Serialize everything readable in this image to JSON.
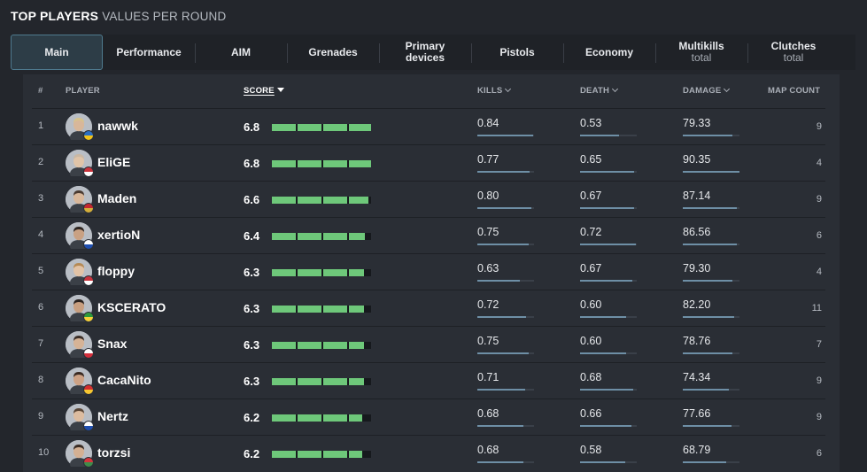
{
  "title": {
    "main": "TOP PLAYERS",
    "sub": "VALUES PER ROUND"
  },
  "tabs": [
    {
      "label": "Main",
      "sub": "",
      "active": true
    },
    {
      "label": "Performance",
      "sub": ""
    },
    {
      "label": "AIM",
      "sub": ""
    },
    {
      "label": "Grenades",
      "sub": ""
    },
    {
      "label": "Primary devices",
      "sub": ""
    },
    {
      "label": "Pistols",
      "sub": ""
    },
    {
      "label": "Economy",
      "sub": ""
    },
    {
      "label": "Multikills",
      "sub": "total"
    },
    {
      "label": "Clutches",
      "sub": "total"
    }
  ],
  "headers": {
    "rank": "#",
    "player": "PLAYER",
    "score": "SCORE",
    "kills": "KILLS",
    "death": "DEATH",
    "damage": "DAMAGE",
    "maps": "MAP COUNT"
  },
  "score_max": 6.8,
  "colors": {
    "score_bar": "#6ec87a",
    "stat_bar": "#6e8fa6",
    "active_tab_border": "#4f7a8e"
  },
  "players": [
    {
      "rank": "1",
      "name": "nawwk",
      "score": "6.8",
      "kills": "0.84",
      "death": "0.53",
      "damage": "79.33",
      "maps": "9",
      "flag": "sweden-flag-icon",
      "flag_colors": [
        "#2b6fc2",
        "#f2c318"
      ],
      "skin": "#d8b79a",
      "hair": "#d7c28c",
      "kills_fill": 0.98,
      "death_fill": 0.68,
      "damage_fill": 0.88
    },
    {
      "rank": "2",
      "name": "EliGE",
      "score": "6.8",
      "kills": "0.77",
      "death": "0.65",
      "damage": "90.35",
      "maps": "4",
      "flag": "usa-flag-icon",
      "flag_colors": [
        "#c8323c",
        "#ffffff"
      ],
      "skin": "#e0c4a8",
      "hair": "#c9b8a4",
      "kills_fill": 0.92,
      "death_fill": 0.95,
      "damage_fill": 1.0
    },
    {
      "rank": "3",
      "name": "Maden",
      "score": "6.6",
      "kills": "0.80",
      "death": "0.67",
      "damage": "87.14",
      "maps": "9",
      "flag": "montenegro-flag-icon",
      "flag_colors": [
        "#c4272f",
        "#d3ae3b"
      ],
      "skin": "#d9b89b",
      "hair": "#4a3a30",
      "kills_fill": 0.95,
      "death_fill": 0.96,
      "damage_fill": 0.96
    },
    {
      "rank": "4",
      "name": "xertioN",
      "score": "6.4",
      "kills": "0.75",
      "death": "0.72",
      "damage": "86.56",
      "maps": "6",
      "flag": "israel-flag-icon",
      "flag_colors": [
        "#ffffff",
        "#1f4fb0"
      ],
      "skin": "#c9a183",
      "hair": "#2d2521",
      "kills_fill": 0.9,
      "death_fill": 0.98,
      "damage_fill": 0.95
    },
    {
      "rank": "5",
      "name": "floppy",
      "score": "6.3",
      "kills": "0.63",
      "death": "0.67",
      "damage": "79.30",
      "maps": "4",
      "flag": "usa-flag-icon",
      "flag_colors": [
        "#c8323c",
        "#ffffff"
      ],
      "skin": "#e2c3a6",
      "hair": "#b58a55",
      "kills_fill": 0.75,
      "death_fill": 0.92,
      "damage_fill": 0.88
    },
    {
      "rank": "6",
      "name": "KSCERATO",
      "score": "6.3",
      "kills": "0.72",
      "death": "0.60",
      "damage": "82.20",
      "maps": "11",
      "flag": "brazil-flag-icon",
      "flag_colors": [
        "#2f9a3c",
        "#f6d13a"
      ],
      "skin": "#c89f80",
      "hair": "#2a221e",
      "kills_fill": 0.86,
      "death_fill": 0.82,
      "damage_fill": 0.91
    },
    {
      "rank": "7",
      "name": "Snax",
      "score": "6.3",
      "kills": "0.75",
      "death": "0.60",
      "damage": "78.76",
      "maps": "7",
      "flag": "poland-flag-icon",
      "flag_colors": [
        "#ffffff",
        "#d32f3c"
      ],
      "skin": "#d6b396",
      "hair": "#3b2e27",
      "kills_fill": 0.9,
      "death_fill": 0.82,
      "damage_fill": 0.87
    },
    {
      "rank": "8",
      "name": "CacaNito",
      "score": "6.3",
      "kills": "0.71",
      "death": "0.68",
      "damage": "74.34",
      "maps": "9",
      "flag": "north-macedonia-flag-icon",
      "flag_colors": [
        "#d32f2f",
        "#f6c631"
      ],
      "skin": "#cda285",
      "hair": "#3a2a22",
      "kills_fill": 0.85,
      "death_fill": 0.93,
      "damage_fill": 0.82
    },
    {
      "rank": "9",
      "name": "Nertz",
      "score": "6.2",
      "kills": "0.68",
      "death": "0.66",
      "damage": "77.66",
      "maps": "9",
      "flag": "israel-flag-icon",
      "flag_colors": [
        "#ffffff",
        "#1f4fb0"
      ],
      "skin": "#dcbca0",
      "hair": "#5a4636",
      "kills_fill": 0.81,
      "death_fill": 0.9,
      "damage_fill": 0.86
    },
    {
      "rank": "10",
      "name": "torzsi",
      "score": "6.2",
      "kills": "0.68",
      "death": "0.58",
      "damage": "68.79",
      "maps": "6",
      "flag": "hungary-flag-icon",
      "flag_colors": [
        "#d3343c",
        "#3f8c4a"
      ],
      "skin": "#d4b093",
      "hair": "#3a2c24",
      "kills_fill": 0.81,
      "death_fill": 0.79,
      "damage_fill": 0.76
    }
  ]
}
